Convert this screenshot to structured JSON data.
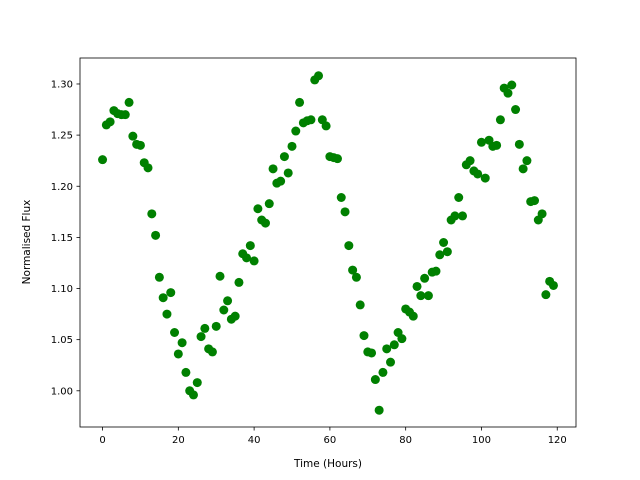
{
  "chart_data": {
    "type": "scatter",
    "xlabel": "Time (Hours)",
    "ylabel": "Normalised Flux",
    "x": [
      0,
      1,
      2,
      3,
      4,
      5,
      6,
      7,
      8,
      9,
      10,
      11,
      12,
      13,
      14,
      15,
      16,
      17,
      18,
      19,
      20,
      21,
      22,
      23,
      24,
      25,
      26,
      27,
      28,
      29,
      30,
      31,
      32,
      33,
      34,
      35,
      36,
      37,
      38,
      39,
      40,
      41,
      42,
      43,
      44,
      45,
      46,
      47,
      48,
      49,
      50,
      51,
      52,
      53,
      54,
      55,
      56,
      57,
      58,
      59,
      60,
      61,
      62,
      63,
      64,
      65,
      66,
      67,
      68,
      69,
      70,
      71,
      72,
      73,
      74,
      75,
      76,
      77,
      78,
      79,
      80,
      81,
      82,
      83,
      84,
      85,
      86,
      87,
      88,
      89,
      90,
      91,
      92,
      93,
      94,
      95,
      96,
      97,
      98,
      99,
      100,
      101,
      102,
      103,
      104,
      105,
      106,
      107,
      108,
      109,
      110,
      111,
      112,
      113,
      114,
      115,
      116,
      117,
      118,
      119
    ],
    "series": [
      {
        "name": "flux",
        "color": "#008000",
        "values": [
          1.226,
          1.26,
          1.263,
          1.274,
          1.271,
          1.27,
          1.27,
          1.282,
          1.249,
          1.241,
          1.24,
          1.223,
          1.218,
          1.173,
          1.152,
          1.111,
          1.091,
          1.075,
          1.096,
          1.057,
          1.036,
          1.047,
          1.018,
          1.0,
          0.996,
          1.008,
          1.053,
          1.061,
          1.041,
          1.038,
          1.063,
          1.112,
          1.079,
          1.088,
          1.07,
          1.073,
          1.106,
          1.134,
          1.13,
          1.142,
          1.127,
          1.178,
          1.167,
          1.164,
          1.183,
          1.217,
          1.203,
          1.205,
          1.229,
          1.213,
          1.239,
          1.254,
          1.282,
          1.262,
          1.264,
          1.265,
          1.304,
          1.308,
          1.265,
          1.259,
          1.229,
          1.228,
          1.227,
          1.189,
          1.175,
          1.142,
          1.118,
          1.111,
          1.084,
          1.054,
          1.038,
          1.037,
          1.011,
          0.981,
          1.018,
          1.041,
          1.028,
          1.045,
          1.057,
          1.051,
          1.08,
          1.077,
          1.073,
          1.102,
          1.093,
          1.11,
          1.093,
          1.116,
          1.117,
          1.133,
          1.145,
          1.136,
          1.167,
          1.171,
          1.189,
          1.171,
          1.221,
          1.225,
          1.215,
          1.212,
          1.243,
          1.208,
          1.245,
          1.239,
          1.24,
          1.265,
          1.296,
          1.291,
          1.299,
          1.275,
          1.241,
          1.217,
          1.225,
          1.185,
          1.186,
          1.167,
          1.173,
          1.094,
          1.107,
          1.103
        ]
      }
    ],
    "xlim": [
      -5.95,
      124.95
    ],
    "xticks": [
      0,
      20,
      40,
      60,
      80,
      100,
      120
    ],
    "ylim": [
      0.9646,
      1.3254
    ],
    "yticks": [
      {
        "value": 1.0,
        "label": "1.00"
      },
      {
        "value": 1.05,
        "label": "1.05"
      },
      {
        "value": 1.1,
        "label": "1.10"
      },
      {
        "value": 1.15,
        "label": "1.15"
      },
      {
        "value": 1.2,
        "label": "1.20"
      },
      {
        "value": 1.25,
        "label": "1.25"
      },
      {
        "value": 1.3,
        "label": "1.30"
      }
    ]
  }
}
